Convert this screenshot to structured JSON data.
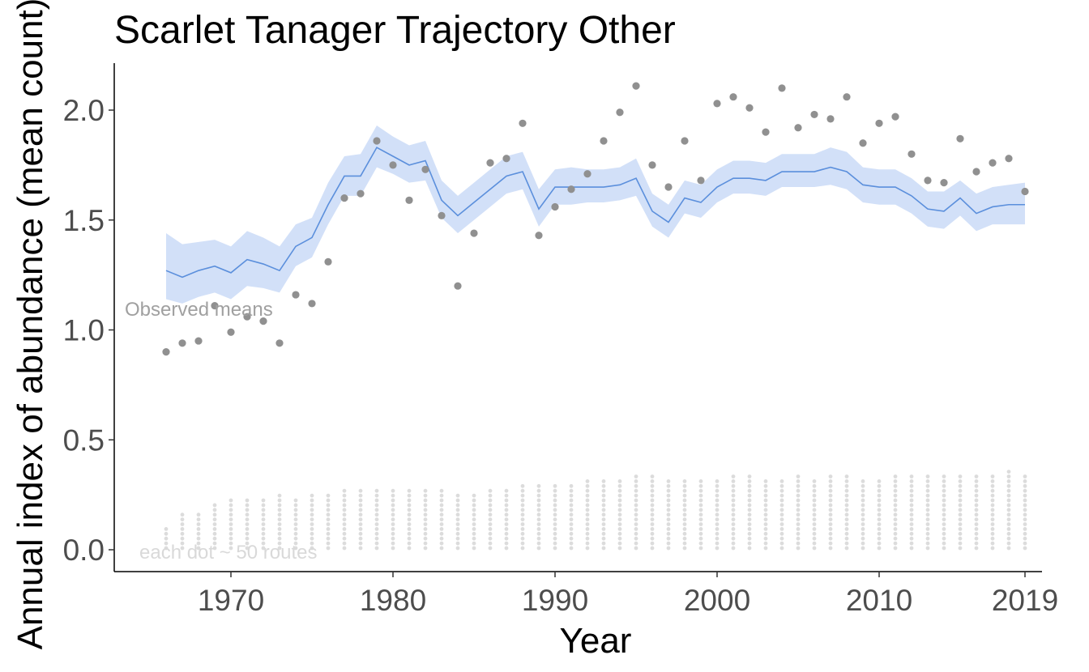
{
  "chart_data": {
    "type": "line",
    "title": "Scarlet Tanager Trajectory Other",
    "xlabel": "Year",
    "ylabel": "Annual index of abundance (mean count)",
    "xlim": [
      1963,
      2021
    ],
    "ylim": [
      -0.1,
      2.2
    ],
    "x_ticks": [
      1970,
      1980,
      1990,
      2000,
      2010,
      2019
    ],
    "y_ticks": [
      0.0,
      0.5,
      1.0,
      1.5,
      2.0
    ],
    "y_tick_labels": [
      "0.0",
      "0.5",
      "1.0",
      "1.5",
      "2.0"
    ],
    "grid": false,
    "colors": {
      "index_line": "#5b8fdc",
      "ci_band": "#d2e0f8",
      "observed_points": "#909090",
      "route_dots": "#dcdcdc"
    },
    "annotations": {
      "observed": "Observed means",
      "routes": "each dot ~ 50 routes"
    },
    "years": [
      1966,
      1967,
      1968,
      1969,
      1970,
      1971,
      1972,
      1973,
      1974,
      1975,
      1976,
      1977,
      1978,
      1979,
      1980,
      1981,
      1982,
      1983,
      1984,
      1985,
      1986,
      1987,
      1988,
      1989,
      1990,
      1991,
      1992,
      1993,
      1994,
      1995,
      1996,
      1997,
      1998,
      1999,
      2000,
      2001,
      2002,
      2003,
      2004,
      2005,
      2006,
      2007,
      2008,
      2009,
      2010,
      2011,
      2012,
      2013,
      2014,
      2015,
      2016,
      2017,
      2018,
      2019
    ],
    "index": [
      1.27,
      1.24,
      1.27,
      1.29,
      1.26,
      1.32,
      1.3,
      1.27,
      1.38,
      1.42,
      1.57,
      1.7,
      1.7,
      1.83,
      1.79,
      1.75,
      1.77,
      1.59,
      1.52,
      1.58,
      1.64,
      1.7,
      1.72,
      1.55,
      1.65,
      1.65,
      1.65,
      1.65,
      1.66,
      1.69,
      1.54,
      1.49,
      1.6,
      1.58,
      1.65,
      1.69,
      1.69,
      1.68,
      1.72,
      1.72,
      1.72,
      1.74,
      1.72,
      1.66,
      1.65,
      1.65,
      1.61,
      1.55,
      1.54,
      1.6,
      1.53,
      1.56,
      1.57,
      1.57
    ],
    "ci_lower": [
      1.14,
      1.12,
      1.15,
      1.17,
      1.14,
      1.2,
      1.19,
      1.17,
      1.29,
      1.33,
      1.48,
      1.61,
      1.61,
      1.74,
      1.71,
      1.67,
      1.68,
      1.51,
      1.44,
      1.5,
      1.56,
      1.62,
      1.64,
      1.47,
      1.57,
      1.57,
      1.58,
      1.58,
      1.59,
      1.61,
      1.47,
      1.42,
      1.53,
      1.51,
      1.58,
      1.62,
      1.62,
      1.61,
      1.65,
      1.65,
      1.65,
      1.66,
      1.64,
      1.58,
      1.57,
      1.57,
      1.53,
      1.47,
      1.46,
      1.52,
      1.45,
      1.48,
      1.48,
      1.48
    ],
    "ci_upper": [
      1.44,
      1.39,
      1.4,
      1.41,
      1.38,
      1.45,
      1.42,
      1.38,
      1.48,
      1.51,
      1.67,
      1.79,
      1.8,
      1.93,
      1.88,
      1.84,
      1.86,
      1.68,
      1.61,
      1.67,
      1.73,
      1.79,
      1.81,
      1.64,
      1.73,
      1.74,
      1.73,
      1.73,
      1.74,
      1.78,
      1.62,
      1.57,
      1.68,
      1.66,
      1.73,
      1.77,
      1.77,
      1.76,
      1.8,
      1.8,
      1.8,
      1.83,
      1.81,
      1.74,
      1.73,
      1.73,
      1.69,
      1.63,
      1.63,
      1.68,
      1.62,
      1.65,
      1.66,
      1.67
    ],
    "observed_means": [
      0.9,
      0.94,
      0.95,
      1.11,
      0.99,
      1.06,
      1.04,
      0.94,
      1.16,
      1.12,
      1.31,
      1.6,
      1.62,
      1.86,
      1.75,
      1.59,
      1.73,
      1.52,
      1.2,
      1.44,
      1.76,
      1.78,
      1.94,
      1.43,
      1.56,
      1.64,
      1.71,
      1.86,
      1.99,
      2.11,
      1.75,
      1.65,
      1.86,
      1.68,
      2.03,
      2.06,
      2.01,
      1.9,
      2.1,
      1.92,
      1.98,
      1.96,
      2.06,
      1.85,
      1.94,
      1.97,
      1.8,
      1.68,
      1.67,
      1.87,
      1.72,
      1.76,
      1.78,
      1.63
    ],
    "routes_dot_count": [
      5,
      8,
      8,
      10,
      11,
      11,
      11,
      12,
      11,
      12,
      12,
      13,
      13,
      13,
      13,
      13,
      13,
      13,
      12,
      12,
      13,
      13,
      14,
      14,
      14,
      14,
      15,
      15,
      15,
      16,
      16,
      15,
      15,
      15,
      15,
      16,
      16,
      15,
      15,
      16,
      15,
      16,
      16,
      15,
      15,
      16,
      16,
      16,
      16,
      16,
      16,
      16,
      17,
      16
    ]
  }
}
